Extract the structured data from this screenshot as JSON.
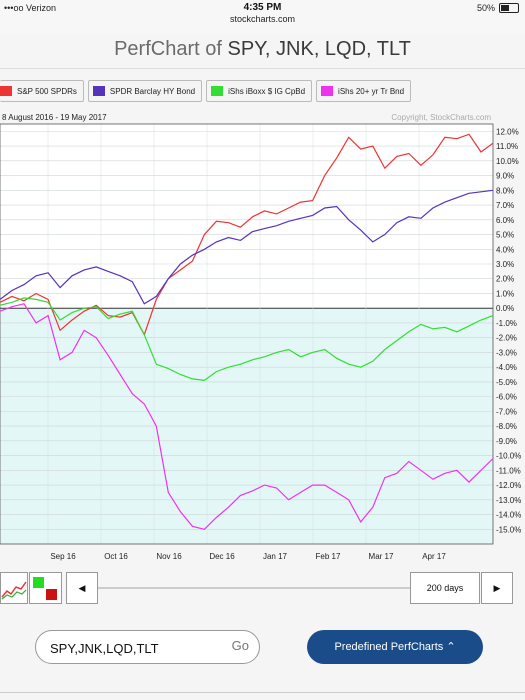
{
  "status": {
    "carrier": "•••oo Verizon",
    "time": "4:35 PM",
    "url": "stockcharts.com",
    "battery": "50%"
  },
  "header": {
    "title_prefix": "PerfChart of",
    "title_symbols": "SPY, JNK, LQD, TLT"
  },
  "legend": [
    {
      "label": "S&P 500 SPDRs",
      "color": "#ee3333"
    },
    {
      "label": "SPDR Barclay HY Bond",
      "color": "#5533bb"
    },
    {
      "label": "iShs iBoxx $ IG CpBd",
      "color": "#33dd33"
    },
    {
      "label": "iShs 20+ yr Tr Bnd",
      "color": "#ee33ee"
    }
  ],
  "chart_data": {
    "type": "line",
    "date_range": "8 August 2016 - 19 May 2017",
    "copyright": "Copyright, StockCharts.com",
    "ylim": [
      -16,
      12.5
    ],
    "y_ticks": [
      "12.0%",
      "11.0%",
      "10.0%",
      "9.0%",
      "8.0%",
      "7.0%",
      "6.0%",
      "5.0%",
      "4.0%",
      "3.0%",
      "2.0%",
      "1.0%",
      "0.0%",
      "-1.0%",
      "-2.0%",
      "-3.0%",
      "-4.0%",
      "-5.0%",
      "-6.0%",
      "-7.0%",
      "-8.0%",
      "-9.0%",
      "-10.0%",
      "-11.0%",
      "-12.0%",
      "-13.0%",
      "-14.0%",
      "-15.0%"
    ],
    "x_ticks": [
      "Sep 16",
      "Oct 16",
      "Nov 16",
      "Dec 16",
      "Jan 17",
      "Feb 17",
      "Mar 17",
      "Apr 17"
    ],
    "x": [
      "Aug 8",
      "Aug 15",
      "Aug 22",
      "Aug 29",
      "Sep 5",
      "Sep 12",
      "Sep 19",
      "Sep 26",
      "Oct 3",
      "Oct 10",
      "Oct 17",
      "Oct 24",
      "Oct 31",
      "Nov 7",
      "Nov 14",
      "Nov 21",
      "Nov 28",
      "Dec 5",
      "Dec 12",
      "Dec 19",
      "Dec 26",
      "Jan 2",
      "Jan 9",
      "Jan 16",
      "Jan 23",
      "Jan 30",
      "Feb 6",
      "Feb 13",
      "Feb 20",
      "Feb 27",
      "Mar 6",
      "Mar 13",
      "Mar 20",
      "Mar 27",
      "Apr 3",
      "Apr 10",
      "Apr 17",
      "Apr 24",
      "May 1",
      "May 8",
      "May 15",
      "May 19"
    ],
    "series": [
      {
        "name": "S&P 500 SPDRs",
        "color": "#ee3333",
        "values": [
          0.4,
          0.8,
          0.5,
          1.0,
          0.6,
          -1.5,
          -0.8,
          -0.2,
          0.2,
          -0.5,
          -0.6,
          -0.3,
          -1.8,
          0.6,
          2.0,
          2.6,
          3.2,
          5.0,
          5.9,
          5.8,
          5.5,
          6.2,
          6.6,
          6.4,
          6.8,
          7.2,
          7.3,
          9.0,
          10.2,
          11.6,
          10.8,
          11.0,
          9.5,
          10.3,
          10.5,
          9.7,
          10.4,
          11.6,
          11.5,
          11.8,
          10.6,
          11.2
        ]
      },
      {
        "name": "SPDR Barclay HY Bond",
        "color": "#5533bb",
        "values": [
          0.6,
          1.2,
          1.6,
          2.2,
          2.4,
          1.4,
          2.2,
          2.6,
          2.8,
          2.5,
          2.2,
          1.8,
          0.3,
          0.8,
          2.0,
          3.0,
          3.6,
          4.0,
          4.5,
          4.8,
          4.6,
          5.2,
          5.4,
          5.6,
          5.9,
          6.1,
          6.3,
          6.8,
          6.9,
          6.0,
          5.3,
          4.5,
          5.0,
          5.8,
          6.2,
          6.1,
          6.8,
          7.2,
          7.5,
          7.8,
          7.9,
          8.0
        ]
      },
      {
        "name": "iShs iBoxx $ IG CpBd",
        "color": "#33dd33",
        "values": [
          0.2,
          0.4,
          0.7,
          0.6,
          0.4,
          -0.8,
          -0.3,
          0.0,
          0.1,
          -0.7,
          -0.4,
          -0.2,
          -1.8,
          -3.8,
          -4.1,
          -4.5,
          -4.8,
          -4.9,
          -4.3,
          -4.0,
          -3.8,
          -3.5,
          -3.3,
          -3.0,
          -2.8,
          -3.3,
          -3.0,
          -2.8,
          -3.4,
          -3.8,
          -4.0,
          -3.6,
          -2.8,
          -2.2,
          -1.6,
          -1.1,
          -1.4,
          -1.3,
          -1.6,
          -1.2,
          -0.8,
          -0.5
        ]
      },
      {
        "name": "iShs 20+ yr Tr Bnd",
        "color": "#ee33ee",
        "values": [
          -0.2,
          0.1,
          0.3,
          -1.0,
          -0.5,
          -3.5,
          -3.0,
          -1.5,
          -2.0,
          -3.2,
          -4.5,
          -5.8,
          -6.5,
          -8.0,
          -12.5,
          -13.8,
          -14.8,
          -15.0,
          -14.2,
          -13.5,
          -12.7,
          -12.4,
          -12.0,
          -12.2,
          -13.0,
          -12.5,
          -12.0,
          -12.0,
          -12.5,
          -13.0,
          -14.5,
          -13.5,
          -11.5,
          -11.2,
          -10.4,
          -11.0,
          -11.6,
          -11.2,
          -11.0,
          -11.8,
          -11.0,
          -10.2
        ]
      }
    ]
  },
  "controls": {
    "prev_label": "◀",
    "next_label": "▶",
    "days_label": "200 days"
  },
  "search": {
    "value": "SPY,JNK,LQD,TLT",
    "go_label": "Go"
  },
  "predefined": {
    "label": "Predefined PerfCharts ⌃"
  }
}
